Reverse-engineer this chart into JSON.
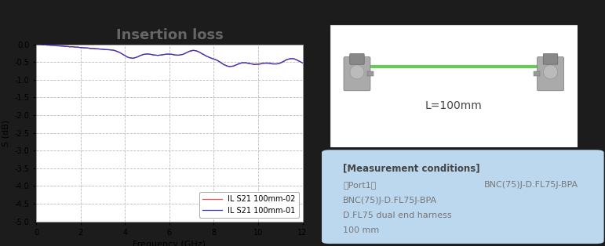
{
  "title": "Insertion loss",
  "title_color": "#666666",
  "title_fontsize": 13,
  "xlabel": "Frequency (GHz)",
  "ylabel": "S (dB)",
  "xlim": [
    0,
    12
  ],
  "ylim": [
    -5,
    0
  ],
  "yticks": [
    0,
    -0.5,
    -1,
    -1.5,
    -2,
    -2.5,
    -3,
    -3.5,
    -4,
    -4.5,
    -5
  ],
  "xticks": [
    0,
    2,
    4,
    6,
    8,
    10,
    12
  ],
  "grid_color": "#bbbbbb",
  "grid_style": "--",
  "plot_bg_color": "#ffffff",
  "fig_bg_color": "#1c1c1c",
  "line1_color": "#3333cc",
  "line2_color": "#dd4444",
  "line1_label": "IL S21 100mm-01",
  "line2_label": "IL S21 100mm-02",
  "legend_fontsize": 7,
  "measurement_box_color": "#bcd8ee",
  "measurement_title": "[Measurement conditions]",
  "measurement_line1": "《Port1》",
  "measurement_line2": "BNC(75)J-D.FL75J-BPA",
  "measurement_line3": "D.FL75 dual end harness",
  "measurement_line4": "100 mm",
  "measurement_right": "BNC(75)J-D.FL75J-BPA",
  "cable_label": "L=100mm",
  "img_box_color": "#ffffff",
  "text_color": "#777777"
}
